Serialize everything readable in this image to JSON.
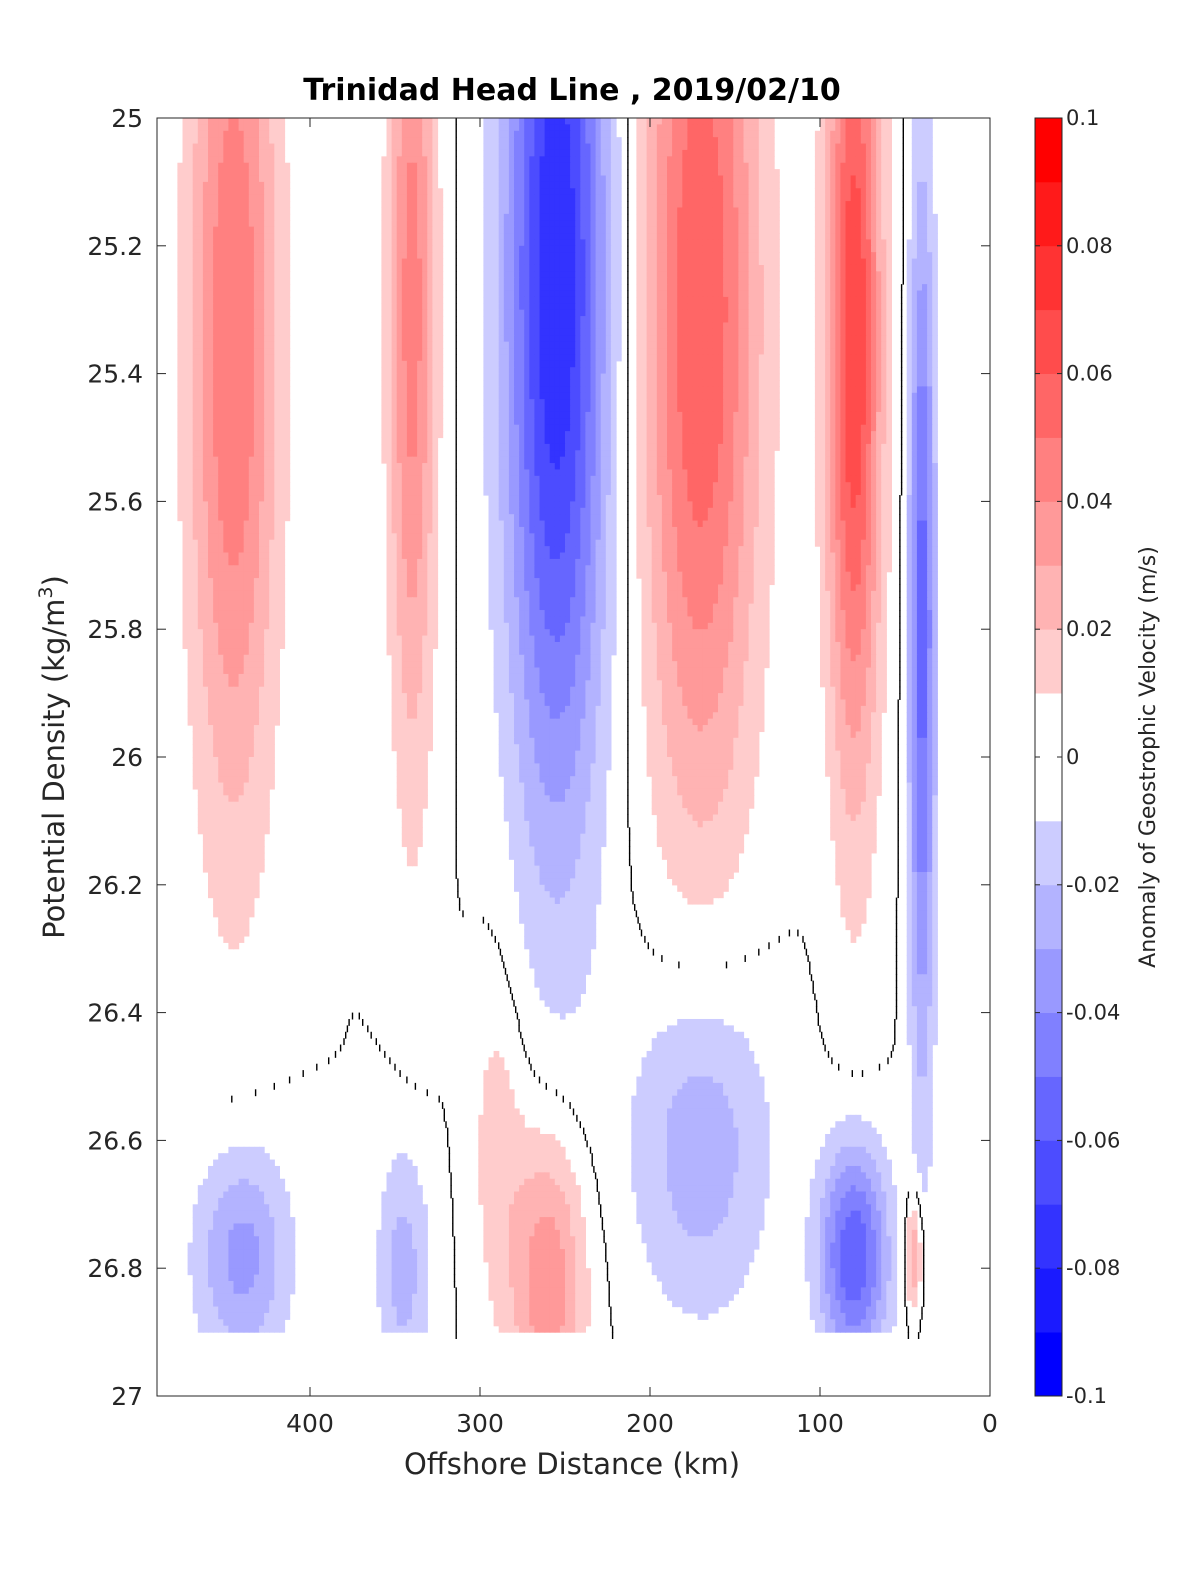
{
  "chart_data": {
    "type": "heatmap",
    "subtype": "filled-contour",
    "title": "Trinidad Head Line , 2019/02/10",
    "xlabel": "Offshore Distance (km)",
    "ylabel": "Potential Density (kg/m",
    "ylabel_sup": "3",
    "ylabel_close": ")",
    "xlim": [
      490,
      0
    ],
    "x_reversed": true,
    "ylim": [
      25,
      27
    ],
    "y_reversed": true,
    "x_ticks": [
      {
        "value": 400,
        "label": "400"
      },
      {
        "value": 300,
        "label": "300"
      },
      {
        "value": 200,
        "label": "200"
      },
      {
        "value": 100,
        "label": "100"
      },
      {
        "value": 0,
        "label": "0"
      }
    ],
    "y_ticks": [
      {
        "value": 25,
        "label": "25"
      },
      {
        "value": 25.2,
        "label": "25.2"
      },
      {
        "value": 25.4,
        "label": "25.4"
      },
      {
        "value": 25.6,
        "label": "25.6"
      },
      {
        "value": 25.8,
        "label": "25.8"
      },
      {
        "value": 26,
        "label": "26"
      },
      {
        "value": 26.2,
        "label": "26.2"
      },
      {
        "value": 26.4,
        "label": "26.4"
      },
      {
        "value": 26.6,
        "label": "26.6"
      },
      {
        "value": 26.8,
        "label": "26.8"
      },
      {
        "value": 27,
        "label": "27"
      }
    ],
    "data_y_max": 26.9,
    "colorbar": {
      "label": "Anomaly of Geostrophic Velocity (m/s)",
      "range": [
        -0.1,
        0.1
      ],
      "levels": [
        -0.1,
        -0.09,
        -0.08,
        -0.07,
        -0.06,
        -0.05,
        -0.04,
        -0.03,
        -0.02,
        -0.01,
        0.01,
        0.02,
        0.03,
        0.04,
        0.05,
        0.06,
        0.07,
        0.08,
        0.09,
        0.1
      ],
      "ticks": [
        {
          "value": 0.1,
          "label": "0.1"
        },
        {
          "value": 0.08,
          "label": "0.08"
        },
        {
          "value": 0.06,
          "label": "0.06"
        },
        {
          "value": 0.04,
          "label": "0.04"
        },
        {
          "value": 0.02,
          "label": "0.02"
        },
        {
          "value": 0,
          "label": "0"
        },
        {
          "value": -0.02,
          "label": "-0.02"
        },
        {
          "value": -0.04,
          "label": "-0.04"
        },
        {
          "value": -0.06,
          "label": "-0.06"
        },
        {
          "value": -0.08,
          "label": "-0.08"
        },
        {
          "value": -0.1,
          "label": "-0.1"
        }
      ],
      "colormap": "blue-white-red"
    },
    "anomaly_features": [
      {
        "name": "positive-core-445km",
        "x": 445,
        "sigma": 25.35,
        "peak": 0.05,
        "half_width_km": 26,
        "sigma_spread": 0.95
      },
      {
        "name": "positive-core-340km",
        "x": 340,
        "sigma": 25.3,
        "peak": 0.045,
        "half_width_km": 14,
        "sigma_spread": 0.9
      },
      {
        "name": "negative-core-255km",
        "x": 255,
        "sigma": 25.25,
        "peak": -0.08,
        "half_width_km": 30,
        "sigma_spread": 1.05
      },
      {
        "name": "positive-core-170km",
        "x": 170,
        "sigma": 25.3,
        "peak": 0.06,
        "half_width_km": 34,
        "sigma_spread": 1.0
      },
      {
        "name": "positive-core-80km",
        "x": 80,
        "sigma": 25.35,
        "peak": 0.07,
        "half_width_km": 16,
        "sigma_spread": 0.85
      },
      {
        "name": "negative-core-40km",
        "x": 40,
        "sigma": 25.8,
        "peak": -0.055,
        "half_width_km": 8,
        "sigma_spread": 0.9
      },
      {
        "name": "negative-deep-440km",
        "x": 440,
        "sigma": 26.78,
        "peak": -0.035,
        "half_width_km": 28,
        "sigma_spread": 0.22
      },
      {
        "name": "negative-deep-345km",
        "x": 345,
        "sigma": 26.8,
        "peak": -0.025,
        "half_width_km": 16,
        "sigma_spread": 0.25
      },
      {
        "name": "positive-deep-260km",
        "x": 260,
        "sigma": 26.82,
        "peak": 0.04,
        "half_width_km": 22,
        "sigma_spread": 0.3
      },
      {
        "name": "positive-mid-290km",
        "x": 290,
        "sigma": 26.6,
        "peak": 0.015,
        "half_width_km": 16,
        "sigma_spread": 0.35
      },
      {
        "name": "negative-deep-170km",
        "x": 170,
        "sigma": 26.6,
        "peak": -0.03,
        "half_width_km": 40,
        "sigma_spread": 0.35
      },
      {
        "name": "negative-deep-80km",
        "x": 80,
        "sigma": 26.78,
        "peak": -0.06,
        "half_width_km": 20,
        "sigma_spread": 0.22
      },
      {
        "name": "positive-deep-45km",
        "x": 45,
        "sigma": 26.78,
        "peak": 0.035,
        "half_width_km": 5,
        "sigma_spread": 0.12
      }
    ],
    "legend": "colorbar-right",
    "grid": false
  }
}
